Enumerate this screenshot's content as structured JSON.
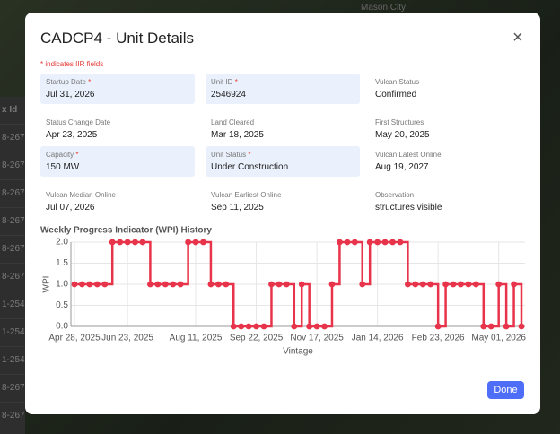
{
  "background": {
    "place": "Mason City",
    "column": "x Id",
    "rows": [
      "8-267",
      "8-267",
      "8-267",
      "8-267",
      "8-267",
      "8-267",
      "1-254",
      "1-254",
      "1-254",
      "8-267",
      "8-267"
    ]
  },
  "modal": {
    "title": "CADCP4 - Unit Details",
    "close": "×",
    "note": "* indicates IIR fields",
    "fields": [
      {
        "label": "Startup Date",
        "mark": "*",
        "value": "Jul 31, 2026",
        "highlight": true
      },
      {
        "label": "Unit ID",
        "mark": "*",
        "value": "2546924",
        "highlight": true
      },
      {
        "label": "Vulcan Status",
        "value": "Confirmed"
      },
      {
        "label": "Status Change Date",
        "value": "Apr 23, 2025"
      },
      {
        "label": "Land Cleared",
        "value": "Mar 18, 2025"
      },
      {
        "label": "First Structures",
        "value": "May 20, 2025"
      },
      {
        "label": "Capacity",
        "mark": "*",
        "value": "150 MW",
        "highlight": true
      },
      {
        "label": "Unit Status",
        "mark": "*",
        "value": "Under Construction",
        "highlight": true
      },
      {
        "label": "Vulcan Latest Online",
        "value": "Aug 19, 2027"
      },
      {
        "label": "Vulcan Median Online",
        "value": "Jul 07, 2026"
      },
      {
        "label": "Vulcan Earliest Online",
        "value": "Sep 11, 2025"
      },
      {
        "label": "Observation",
        "value": "structures visible"
      }
    ],
    "button": "Done"
  },
  "chart_data": {
    "type": "step",
    "title": "Weekly Progress Indicator (WPI) History",
    "x_label": "Vintage",
    "y_label": "WPI",
    "color": "#e8344a",
    "grid": true,
    "categories": [
      "Apr 28, 2025",
      null,
      null,
      null,
      null,
      null,
      null,
      "Jun 23, 2025",
      null,
      null,
      null,
      null,
      null,
      null,
      null,
      null,
      "Aug 11, 2025",
      null,
      null,
      null,
      null,
      null,
      null,
      null,
      "Sep 22, 2025",
      null,
      null,
      null,
      null,
      null,
      null,
      null,
      "Nov 17, 2025",
      null,
      null,
      null,
      null,
      null,
      null,
      null,
      "Jan 14, 2026",
      null,
      null,
      null,
      null,
      null,
      null,
      null,
      "Feb 23, 2026",
      null,
      null,
      null,
      null,
      null,
      null,
      null,
      "May 01, 2026",
      null,
      null,
      null
    ],
    "values": [
      1,
      1,
      1,
      1,
      1,
      2,
      2,
      2,
      2,
      2,
      1,
      1,
      1,
      1,
      1,
      2,
      2,
      2,
      1,
      1,
      1,
      0,
      0,
      0,
      0,
      0,
      1,
      1,
      1,
      0,
      1,
      0,
      0,
      0,
      1,
      2,
      2,
      2,
      1,
      2,
      2,
      2,
      2,
      2,
      1,
      1,
      1,
      1,
      0,
      1,
      1,
      1,
      1,
      1,
      0,
      0,
      1,
      0,
      1,
      0
    ],
    "ylim": [
      0,
      2
    ],
    "yticks": [
      {
        "value": 0,
        "label": "0.0"
      },
      {
        "value": 0.5,
        "label": "0.5"
      },
      {
        "value": 1,
        "label": "1.0"
      },
      {
        "value": 1.5,
        "label": "1.5"
      },
      {
        "value": 2,
        "label": "2.0"
      }
    ]
  }
}
